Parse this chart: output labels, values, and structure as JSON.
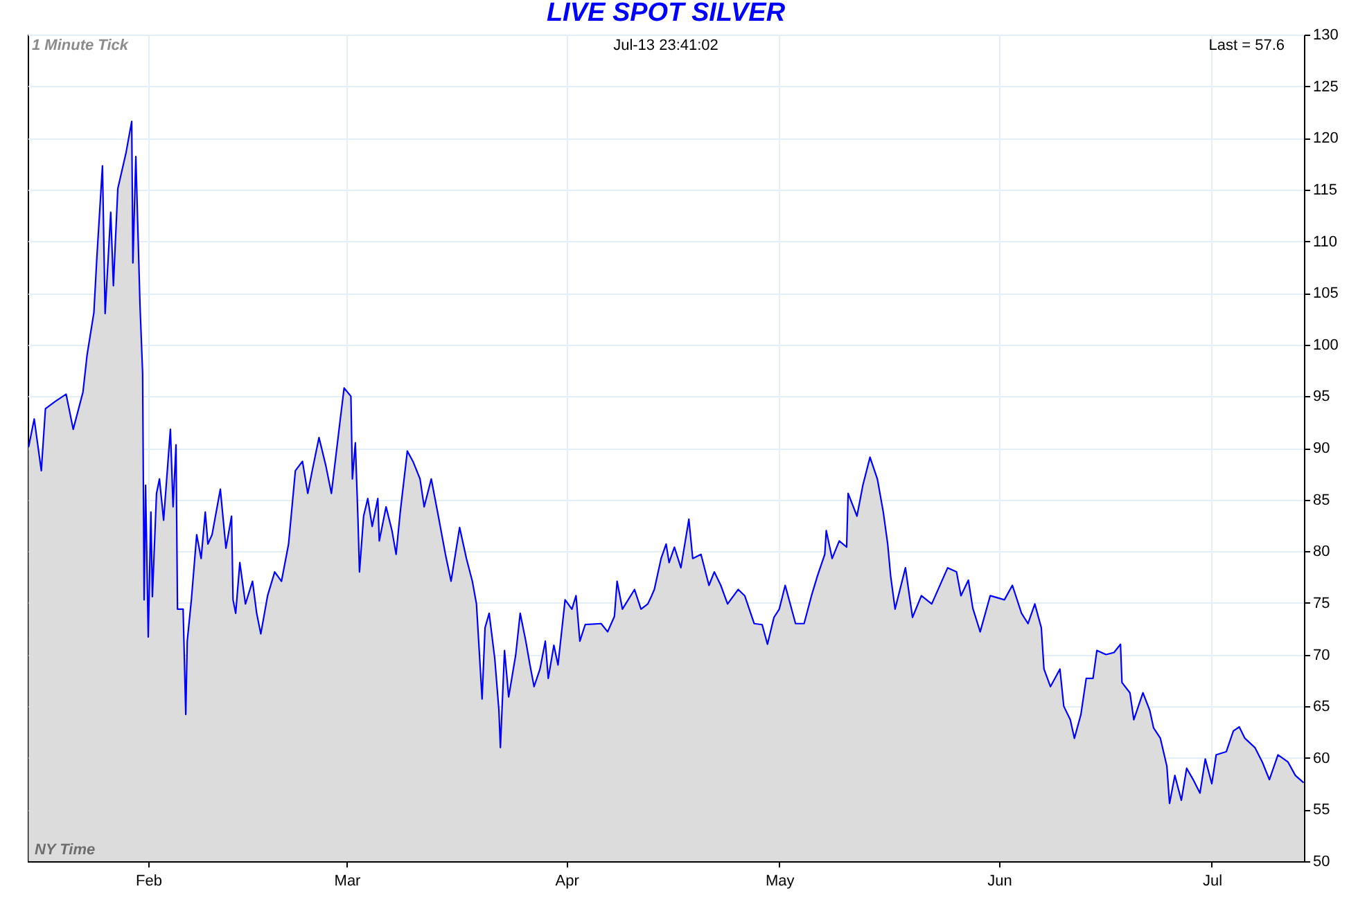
{
  "chart_data": {
    "type": "area",
    "title": "LIVE SPOT SILVER",
    "annotations": [
      "1 Minute Tick",
      "Jul-13  23:41:02",
      "Last = 57.6",
      "NY Time"
    ],
    "x": [
      "--01-15T03:00",
      "--01-15T22:00",
      "--01-16T22:00",
      "--01-17T12:00",
      "--01-18T21:00",
      "--01-20T10:00",
      "--01-21T10:00",
      "--01-22T19:00",
      "--01-23T09:00",
      "--01-24T08:00",
      "--01-24T18:00",
      "--01-25T13:00",
      "--01-25T22:00",
      "--01-26T17:00",
      "--01-27T02:00",
      "--01-27T17:00",
      "--01-28T21:00",
      "--01-29T16:00",
      "--01-29T20:00",
      "--01-30T06:00",
      "--01-30T20:00",
      "--01-31T05:00",
      "--01-31T10:00",
      "--01-31T15:00",
      "--02-01T00:00",
      "--02-01T09:00",
      "--02-01T14:00",
      "--02-02T04:00",
      "--02-02T14:00",
      "--02-03T04:00",
      "--02-04T03:00",
      "--02-04T12:00",
      "--02-04T22:00",
      "--02-05T03:00",
      "--02-05T22:00",
      "--02-06T07:00",
      "--02-06T12:00",
      "--02-07T02:00",
      "--02-07T20:00",
      "--02-08T11:00",
      "--02-09T01:00",
      "--02-09T10:00",
      "--02-10T00:00",
      "--02-11T04:00",
      "--02-11T23:00",
      "--02-12T18:00",
      "--02-12T23:00",
      "--02-13T08:00",
      "--02-13T22:00",
      "--02-14T17:00",
      "--02-15T17:00",
      "--02-16T07:00",
      "--02-16T21:00",
      "--02-17T20:00",
      "--02-18T20:00",
      "--02-19T19:00",
      "--02-20T19:00",
      "--02-21T18:00",
      "--02-22T18:00",
      "--02-23T12:00",
      "--02-24T03:00",
      "--02-25T02:00",
      "--02-26T01:00",
      "--02-26T20:00",
      "--02-28T00:00",
      "--02-28T15:00",
      "--03-01T14:00",
      "--03-01T19:00",
      "--03-02T05:00",
      "--03-02T14:00",
      "--03-02T19:00",
      "--03-03T09:00",
      "--03-03T23:00",
      "--03-04T14:00",
      "--03-05T09:00",
      "--03-05T14:00",
      "--03-06T13:00",
      "--03-07T09:00",
      "--03-07T23:00",
      "--03-08T13:00",
      "--03-09T13:00",
      "--03-10T08:00",
      "--03-11T08:00",
      "--03-11T22:00",
      "--03-12T22:00",
      "--03-13T22:00",
      "--03-14T22:00",
      "--03-15T17:00",
      "--03-16T22:00",
      "--03-17T21:00",
      "--03-18T17:00",
      "--03-19T07:00",
      "--03-20T02:00",
      "--03-20T12:00",
      "--03-21T02:00",
      "--03-21T21:00",
      "--03-22T11:00",
      "--03-22T16:00",
      "--03-23T06:00",
      "--03-23T20:00",
      "--03-24T20:00",
      "--03-25T11:00",
      "--03-26T06:00",
      "--03-26T20:00",
      "--03-27T10:00",
      "--03-28T06:00",
      "--03-29T00:00",
      "--03-29T10:00",
      "--03-30T05:00",
      "--03-30T19:00",
      "--03-31T19:00",
      "--04-01T18:00",
      "--04-02T08:00",
      "--04-02T21:00",
      "--04-03T15:00",
      "--04-05T21:00",
      "--04-06T19:00",
      "--04-07T18:00",
      "--04-08T03:00",
      "--04-08T21:00",
      "--04-10T14:00",
      "--04-11T12:00",
      "--04-12T11:00",
      "--04-13T00:00",
      "--04-13T09:00",
      "--04-14T08:00",
      "--04-15T01:00",
      "--04-15T11:00",
      "--04-16T05:00",
      "--04-17T03:00",
      "--04-18T06:00",
      "--04-18T19:00",
      "--04-19T23:00",
      "--04-21T02:00",
      "--04-21T20:00",
      "--04-22T18:00",
      "--04-23T17:00",
      "--04-25T05:00",
      "--04-26T03:00",
      "--04-27T11:00",
      "--04-28T14:00",
      "--04-29T08:00",
      "--04-30T06:00",
      "--05-01T00:00",
      "--05-01T20:00",
      "--05-03T07:00",
      "--05-04T12:00",
      "--05-05T13:00",
      "--05-06T09:00",
      "--05-07T10:00",
      "--05-07T15:00",
      "--05-08T11:00",
      "--05-09T11:00",
      "--05-10T12:00",
      "--05-10T17:00",
      "--05-11T23:00",
      "--05-12T19:00",
      "--05-13T19:00",
      "--05-14T20:00",
      "--05-15T16:00",
      "--05-16T07:00",
      "--05-16T17:00",
      "--05-17T08:00",
      "--05-18T19:00",
      "--05-19T19:00",
      "--05-21T01:00",
      "--05-22T12:00",
      "--05-24T18:00",
      "--05-26T00:00",
      "--05-26T15:00",
      "--05-27T16:00",
      "--05-28T07:00",
      "--05-29T08:00",
      "--05-30T18:00",
      "--06-01T18:00",
      "--06-02T21:00",
      "--06-04T04:00",
      "--06-05T02:00",
      "--06-06T01:00",
      "--06-06T23:00",
      "--06-07T08:00",
      "--06-08T06:00",
      "--06-09T14:00",
      "--06-10T03:00",
      "--06-11T01:00",
      "--06-11T15:00",
      "--06-12T13:00",
      "--06-13T07:00",
      "--06-14T06:00",
      "--06-14T19:00",
      "--06-16T02:00",
      "--06-17T05:00",
      "--06-18T03:00",
      "--06-18T08:00",
      "--06-19T11:00",
      "--06-20T00:00",
      "--06-21T07:00",
      "--06-22T06:00",
      "--06-22T19:00",
      "--06-23T18:00",
      "--06-24T16:00",
      "--06-25T01:00",
      "--06-25T19:00",
      "--06-26T17:00",
      "--06-27T11:00",
      "--06-28T09:00",
      "--06-29T08:00",
      "--06-30T02:00",
      "--07-01T00:00",
      "--07-01T15:00",
      "--07-03T01:00",
      "--07-04T01:00",
      "--07-04T21:00",
      "--07-05T16:00",
      "--07-07T02:00",
      "--07-08T03:00",
      "--07-09T03:00",
      "--07-10T08:00",
      "--07-11T18:00",
      "--07-12T19:00",
      "--07-13T23:00"
    ],
    "series": [
      {
        "color": "#0000ff",
        "values": [
          90.1,
          92.8,
          87.8,
          93.8,
          94.5,
          95.2,
          91.8,
          95.4,
          99.0,
          103.1,
          108.4,
          117.3,
          103.0,
          112.8,
          105.7,
          115.1,
          118.6,
          121.6,
          107.9,
          118.2,
          103.9,
          97.2,
          75.3,
          86.4,
          71.7,
          83.8,
          75.6,
          85.6,
          87.0,
          83.0,
          91.8,
          84.3,
          90.3,
          74.4,
          74.4,
          64.2,
          71.3,
          75.3,
          81.6,
          79.3,
          83.8,
          80.7,
          81.6,
          86.0,
          80.3,
          83.4,
          75.3,
          74.0,
          78.9,
          74.9,
          77.1,
          74.0,
          72.0,
          75.7,
          78.0,
          77.1,
          80.7,
          87.8,
          88.7,
          85.6,
          87.8,
          91.0,
          88.3,
          85.6,
          92.3,
          95.8,
          95.0,
          87.0,
          90.5,
          83.0,
          78.0,
          83.4,
          85.1,
          82.4,
          85.1,
          81.0,
          84.3,
          82.0,
          79.7,
          83.8,
          89.7,
          88.7,
          87.0,
          84.3,
          87.0,
          83.4,
          79.7,
          77.1,
          82.3,
          79.3,
          77.1,
          74.9,
          65.7,
          72.6,
          74.0,
          69.6,
          64.6,
          61.0,
          70.4,
          65.9,
          70.0,
          74.0,
          71.3,
          69.0,
          66.9,
          68.6,
          71.3,
          67.7,
          70.9,
          69.0,
          75.3,
          74.4,
          75.7,
          71.3,
          72.9,
          73.0,
          72.2,
          73.7,
          77.1,
          74.4,
          76.3,
          74.4,
          74.9,
          75.7,
          76.3,
          79.3,
          80.7,
          78.9,
          80.4,
          78.4,
          83.1,
          79.3,
          79.7,
          76.7,
          78.0,
          76.7,
          74.9,
          76.3,
          75.7,
          73.0,
          72.9,
          71.0,
          73.6,
          74.4,
          76.7,
          73.0,
          73.0,
          75.7,
          77.6,
          79.7,
          82.0,
          79.3,
          81.0,
          80.4,
          85.6,
          83.4,
          86.4,
          89.1,
          87.0,
          83.8,
          80.7,
          77.6,
          74.4,
          78.4,
          73.6,
          75.7,
          74.9,
          78.4,
          78.0,
          75.7,
          77.2,
          74.5,
          72.2,
          75.7,
          75.3,
          76.7,
          74.0,
          73.0,
          74.9,
          72.6,
          68.6,
          66.9,
          68.6,
          65.0,
          63.7,
          61.9,
          64.2,
          67.7,
          67.7,
          70.4,
          70.0,
          70.2,
          71.0,
          67.3,
          66.3,
          63.7,
          66.3,
          64.6,
          62.9,
          61.9,
          59.2,
          55.6,
          58.3,
          55.9,
          59.0,
          57.9,
          56.6,
          59.9,
          57.5,
          60.3,
          60.6,
          62.6,
          63.0,
          61.9,
          61.0,
          59.6,
          57.9,
          60.3,
          59.6,
          58.3,
          57.6
        ]
      }
    ],
    "xlim": [
      "--01-15",
      "--07-14"
    ],
    "xticks": [
      {
        "value": "--02-01",
        "label": "Feb"
      },
      {
        "value": "--03-01",
        "label": "Mar"
      },
      {
        "value": "--04-01",
        "label": "Apr"
      },
      {
        "value": "--05-01",
        "label": "May"
      },
      {
        "value": "--06-01",
        "label": "Jun"
      },
      {
        "value": "--07-01",
        "label": "Jul"
      }
    ],
    "ylim": [
      50,
      130
    ],
    "yticks": [
      50,
      55,
      60,
      65,
      70,
      75,
      80,
      85,
      90,
      95,
      100,
      105,
      110,
      115,
      120,
      125,
      130
    ],
    "grid": true
  }
}
